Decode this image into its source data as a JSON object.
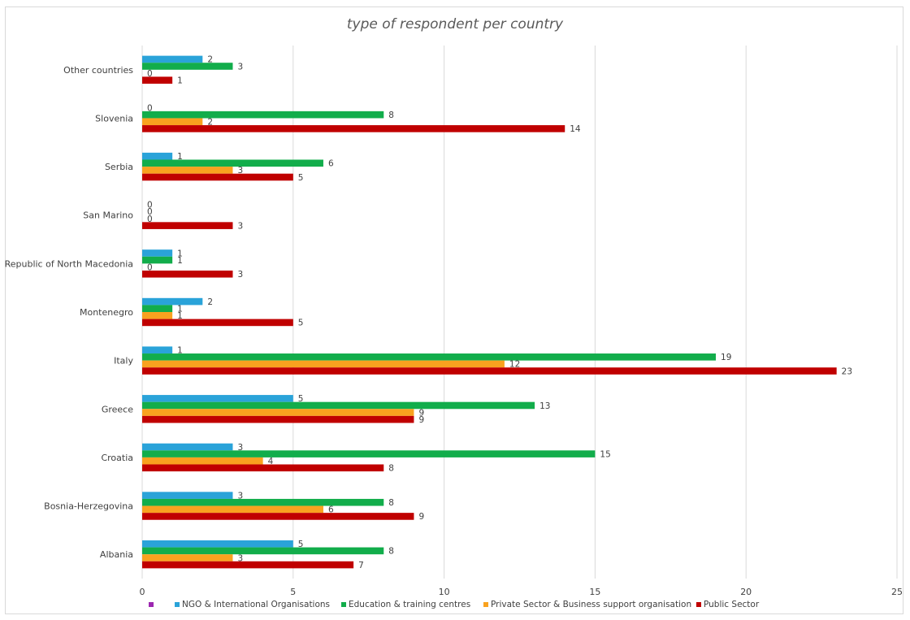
{
  "chart_data": {
    "type": "bar",
    "orientation": "horizontal",
    "title": "type of respondent per country",
    "categories": [
      "Albania",
      "Bosnia-Herzegovina",
      "Croatia",
      "Greece",
      "Italy",
      "Montenegro",
      "Republic of North Macedonia",
      "San Marino",
      "Serbia",
      "Slovenia",
      "Other countries"
    ],
    "series": [
      {
        "name": "NGO & International Organisations",
        "color": "#2aa3d9",
        "values": [
          5,
          3,
          3,
          5,
          1,
          2,
          1,
          0,
          1,
          0,
          2
        ]
      },
      {
        "name": "Education & training centres",
        "color": "#12ad4b",
        "values": [
          8,
          8,
          15,
          13,
          19,
          1,
          1,
          0,
          6,
          8,
          3
        ]
      },
      {
        "name": "Private Sector & Business support organisation",
        "color": "#f9a21f",
        "values": [
          3,
          6,
          4,
          9,
          12,
          1,
          0,
          0,
          3,
          2,
          0
        ]
      },
      {
        "name": "Public Sector",
        "color": "#c00000",
        "values": [
          7,
          9,
          8,
          9,
          23,
          5,
          3,
          3,
          5,
          14,
          1
        ]
      }
    ],
    "extra_legend_marker": {
      "color": "#9c27b0",
      "label": ""
    },
    "xlim": [
      0,
      25
    ],
    "xticks": [
      0,
      5,
      10,
      15,
      20,
      25
    ],
    "grid": "vertical",
    "legend_position": "bottom",
    "data_labels": true
  }
}
